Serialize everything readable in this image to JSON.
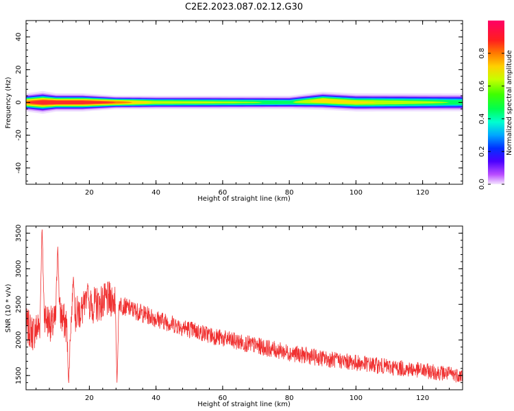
{
  "figure_title": "C2E2.2023.087.02.12.G30",
  "chart_data": [
    {
      "type": "heatmap",
      "xlabel": "Height of straight line (km)",
      "ylabel": "Frequency (Hz)",
      "xlim": [
        1,
        132
      ],
      "ylim": [
        -50,
        50
      ],
      "x_ticks": [
        20,
        40,
        60,
        80,
        100,
        120
      ],
      "y_ticks": [
        -40,
        -20,
        0,
        20,
        40
      ],
      "colorbar": {
        "label": "Normalized spectral amplitude",
        "range": [
          0,
          1
        ],
        "ticks": [
          0.0,
          0.2,
          0.4,
          0.6,
          0.8
        ],
        "colormap": "gist_rainbow_r"
      },
      "band_height": [
        1,
        6,
        10,
        18,
        28,
        40,
        60,
        80,
        90,
        100,
        110,
        132
      ],
      "band_halfwidth_hz": [
        4,
        5,
        4,
        4,
        3,
        3,
        3,
        3,
        4,
        4,
        4,
        4
      ],
      "band_peak_amplitude": [
        0.9,
        1.0,
        1.0,
        1.0,
        0.9,
        0.7,
        0.65,
        0.6,
        0.8,
        0.75,
        0.7,
        0.6
      ],
      "band_center_hz": [
        0,
        0,
        0,
        0,
        0,
        0,
        0,
        0,
        1,
        0,
        0,
        0
      ]
    },
    {
      "type": "line",
      "xlabel": "Height of straight line (km)",
      "ylabel": "SNR (10 * v/v)",
      "xlim": [
        1,
        132
      ],
      "ylim": [
        1300,
        3600
      ],
      "x_ticks": [
        20,
        40,
        60,
        80,
        100,
        120
      ],
      "y_ticks": [
        1500,
        2000,
        2500,
        3000,
        3500
      ],
      "series_color": "#f03030",
      "trend_x": [
        1,
        3,
        5,
        6,
        7,
        9,
        11,
        13,
        15,
        17,
        19,
        22,
        25,
        27,
        28,
        30,
        40,
        50,
        60,
        70,
        80,
        90,
        100,
        110,
        120,
        132
      ],
      "trend_y": [
        2200,
        2100,
        2200,
        2500,
        2300,
        2200,
        2400,
        2200,
        2300,
        2400,
        2450,
        2500,
        2550,
        2580,
        2560,
        2480,
        2300,
        2150,
        2020,
        1920,
        1820,
        1740,
        1680,
        1620,
        1570,
        1500
      ],
      "spikes": [
        {
          "x": 5.8,
          "y": 3600
        },
        {
          "x": 10.5,
          "y": 3350
        },
        {
          "x": 13.8,
          "y": 1380
        },
        {
          "x": 15.2,
          "y": 2900
        },
        {
          "x": 19.5,
          "y": 2800
        },
        {
          "x": 28.3,
          "y": 1400
        }
      ]
    }
  ]
}
